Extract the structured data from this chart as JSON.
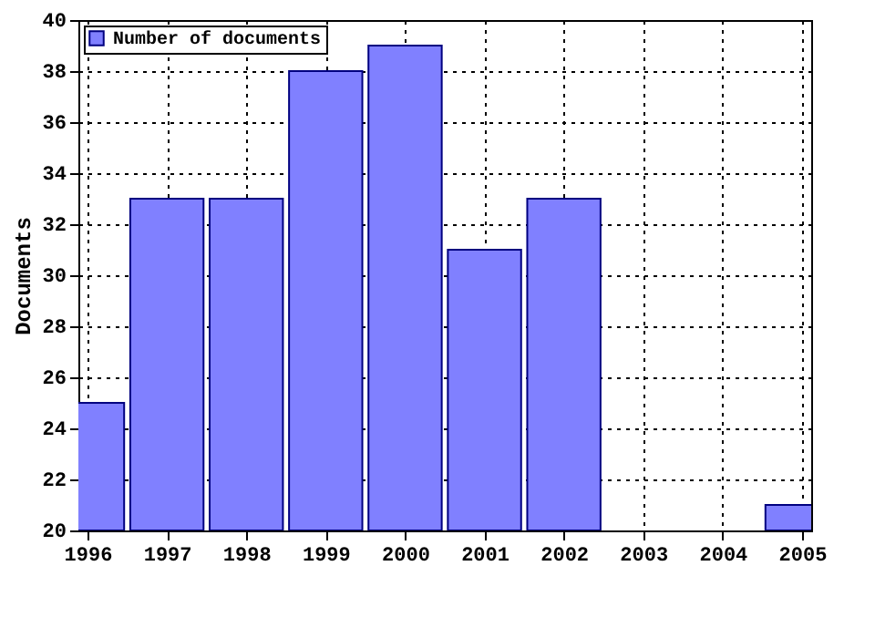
{
  "chart_data": {
    "type": "bar",
    "ylabel": "Documents",
    "x": [
      1996,
      1997,
      1998,
      1999,
      2000,
      2001,
      2002,
      2003,
      2004,
      2005
    ],
    "series": [
      {
        "name": "Number of documents",
        "color": "#8080ff",
        "values": [
          25,
          33,
          33,
          38,
          39,
          31,
          33,
          null,
          null,
          21
        ]
      }
    ],
    "xlim": [
      1996,
      2005
    ],
    "xticks": [
      1996,
      1997,
      1998,
      1999,
      2000,
      2001,
      2002,
      2003,
      2004,
      2005
    ],
    "ylim": [
      20,
      40
    ],
    "yticks": [
      20,
      22,
      24,
      26,
      28,
      30,
      32,
      34,
      36,
      38,
      40
    ],
    "grid": true,
    "legend": "top left"
  }
}
